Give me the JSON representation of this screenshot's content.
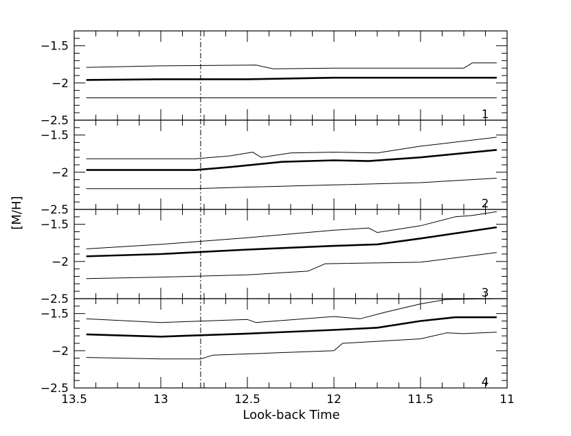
{
  "chart_data": {
    "type": "line",
    "xlabel": "Look-back Time",
    "ylabel": "[M/H]",
    "xlim": [
      13.5,
      11
    ],
    "x_reversed": true,
    "xticks": [
      13.5,
      13,
      12.5,
      12,
      11.5,
      11
    ],
    "xtick_labels": [
      "13.5",
      "13",
      "12.5",
      "12",
      "11.5",
      "11"
    ],
    "marker_line": {
      "x": 12.77,
      "style": "dash-dot"
    },
    "panels": [
      {
        "label": "1",
        "ylim": [
          -2.5,
          -1.3
        ],
        "yticks": [
          -2.5,
          -2,
          -1.5
        ],
        "ytick_labels": [
          "−2.5",
          "−2",
          "−1.5"
        ],
        "series": [
          {
            "role": "upper",
            "points": [
              [
                13.43,
                -1.79
              ],
              [
                13.0,
                -1.77
              ],
              [
                12.45,
                -1.76
              ],
              [
                12.35,
                -1.81
              ],
              [
                12.0,
                -1.8
              ],
              [
                11.5,
                -1.8
              ],
              [
                11.25,
                -1.8
              ],
              [
                11.2,
                -1.73
              ],
              [
                11.06,
                -1.73
              ]
            ]
          },
          {
            "role": "main",
            "points": [
              [
                13.43,
                -1.96
              ],
              [
                13.0,
                -1.95
              ],
              [
                12.5,
                -1.95
              ],
              [
                12.0,
                -1.93
              ],
              [
                11.5,
                -1.93
              ],
              [
                11.06,
                -1.93
              ]
            ]
          },
          {
            "role": "lower",
            "points": [
              [
                13.43,
                -2.2
              ],
              [
                12.5,
                -2.2
              ],
              [
                11.06,
                -2.2
              ]
            ]
          }
        ]
      },
      {
        "label": "2",
        "ylim": [
          -2.5,
          -1.3
        ],
        "yticks": [
          -2.5,
          -2,
          -1.5
        ],
        "ytick_labels": [
          "−2.5",
          "−2",
          "−1.5"
        ],
        "series": [
          {
            "role": "upper",
            "points": [
              [
                13.43,
                -1.82
              ],
              [
                12.8,
                -1.82
              ],
              [
                12.6,
                -1.78
              ],
              [
                12.47,
                -1.73
              ],
              [
                12.42,
                -1.8
              ],
              [
                12.25,
                -1.74
              ],
              [
                12.0,
                -1.73
              ],
              [
                11.75,
                -1.74
              ],
              [
                11.5,
                -1.65
              ],
              [
                11.06,
                -1.53
              ]
            ]
          },
          {
            "role": "main",
            "points": [
              [
                13.43,
                -1.97
              ],
              [
                12.8,
                -1.97
              ],
              [
                12.6,
                -1.93
              ],
              [
                12.3,
                -1.86
              ],
              [
                12.0,
                -1.84
              ],
              [
                11.8,
                -1.85
              ],
              [
                11.5,
                -1.8
              ],
              [
                11.06,
                -1.7
              ]
            ]
          },
          {
            "role": "lower",
            "points": [
              [
                13.43,
                -2.22
              ],
              [
                12.8,
                -2.22
              ],
              [
                12.5,
                -2.2
              ],
              [
                12.0,
                -2.17
              ],
              [
                11.5,
                -2.14
              ],
              [
                11.06,
                -2.08
              ]
            ]
          }
        ]
      },
      {
        "label": "3",
        "ylim": [
          -2.5,
          -1.3
        ],
        "yticks": [
          -2.5,
          -2,
          -1.5
        ],
        "ytick_labels": [
          "−2.5",
          "−2",
          "−1.5"
        ],
        "series": [
          {
            "role": "upper",
            "points": [
              [
                13.43,
                -1.83
              ],
              [
                13.0,
                -1.77
              ],
              [
                12.5,
                -1.68
              ],
              [
                12.0,
                -1.58
              ],
              [
                11.8,
                -1.55
              ],
              [
                11.75,
                -1.61
              ],
              [
                11.5,
                -1.52
              ],
              [
                11.3,
                -1.4
              ],
              [
                11.2,
                -1.38
              ],
              [
                11.06,
                -1.33
              ]
            ]
          },
          {
            "role": "main",
            "points": [
              [
                13.43,
                -1.93
              ],
              [
                13.0,
                -1.9
              ],
              [
                12.5,
                -1.84
              ],
              [
                12.0,
                -1.79
              ],
              [
                11.75,
                -1.77
              ],
              [
                11.5,
                -1.69
              ],
              [
                11.06,
                -1.54
              ]
            ]
          },
          {
            "role": "lower",
            "points": [
              [
                13.43,
                -2.23
              ],
              [
                13.0,
                -2.21
              ],
              [
                12.5,
                -2.18
              ],
              [
                12.15,
                -2.13
              ],
              [
                12.05,
                -2.03
              ],
              [
                11.5,
                -2.01
              ],
              [
                11.06,
                -1.88
              ]
            ]
          }
        ]
      },
      {
        "label": "4",
        "ylim": [
          -2.5,
          -1.3
        ],
        "yticks": [
          -2.5,
          -2,
          -1.5
        ],
        "ytick_labels": [
          "−2.5",
          "−2",
          "−1.5"
        ],
        "series": [
          {
            "role": "upper",
            "points": [
              [
                13.43,
                -1.57
              ],
              [
                13.0,
                -1.62
              ],
              [
                12.5,
                -1.58
              ],
              [
                12.45,
                -1.62
              ],
              [
                12.0,
                -1.54
              ],
              [
                11.85,
                -1.57
              ],
              [
                11.7,
                -1.48
              ],
              [
                11.5,
                -1.37
              ],
              [
                11.35,
                -1.31
              ],
              [
                11.06,
                -1.3
              ]
            ]
          },
          {
            "role": "main",
            "points": [
              [
                13.43,
                -1.78
              ],
              [
                13.0,
                -1.81
              ],
              [
                12.5,
                -1.77
              ],
              [
                12.0,
                -1.72
              ],
              [
                11.75,
                -1.69
              ],
              [
                11.5,
                -1.6
              ],
              [
                11.3,
                -1.55
              ],
              [
                11.06,
                -1.55
              ]
            ]
          },
          {
            "role": "lower",
            "points": [
              [
                13.43,
                -2.09
              ],
              [
                13.0,
                -2.11
              ],
              [
                12.77,
                -2.11
              ],
              [
                12.7,
                -2.06
              ],
              [
                12.0,
                -2.0
              ],
              [
                11.95,
                -1.9
              ],
              [
                11.5,
                -1.84
              ],
              [
                11.35,
                -1.76
              ],
              [
                11.25,
                -1.77
              ],
              [
                11.06,
                -1.75
              ]
            ]
          }
        ]
      }
    ]
  }
}
